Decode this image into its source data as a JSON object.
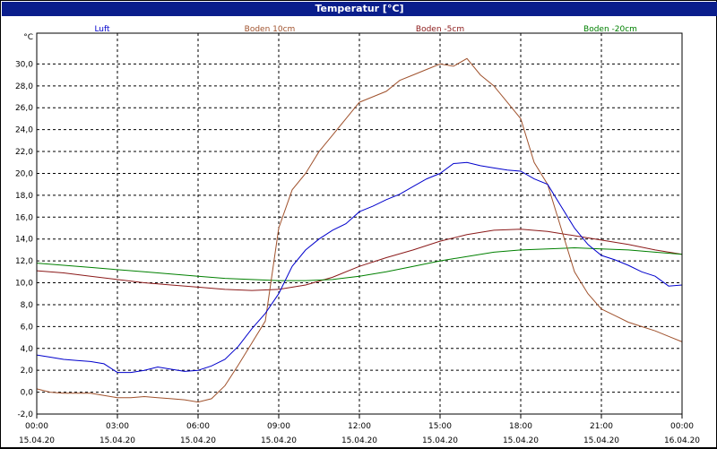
{
  "window": {
    "title": "Temperatur [°C]"
  },
  "chart_data": {
    "type": "line",
    "ylabel": "°C",
    "ylim": [
      -2,
      32
    ],
    "yticks": [
      "-2,0",
      "0,0",
      "2,0",
      "4,0",
      "6,0",
      "8,0",
      "10,0",
      "12,0",
      "14,0",
      "16,0",
      "18,0",
      "20,0",
      "22,0",
      "24,0",
      "26,0",
      "28,0",
      "30,0"
    ],
    "xlim": [
      0,
      24
    ],
    "xticks": [
      {
        "time": "00:00",
        "date": "15.04.20"
      },
      {
        "time": "03:00",
        "date": "15.04.20"
      },
      {
        "time": "06:00",
        "date": "15.04.20"
      },
      {
        "time": "09:00",
        "date": "15.04.20"
      },
      {
        "time": "12:00",
        "date": "15.04.20"
      },
      {
        "time": "15:00",
        "date": "15.04.20"
      },
      {
        "time": "18:00",
        "date": "15.04.20"
      },
      {
        "time": "21:00",
        "date": "15.04.20"
      },
      {
        "time": "00:00",
        "date": "16.04.20"
      }
    ],
    "grid": true,
    "legend_position": "top",
    "series": [
      {
        "name": "Luft",
        "color": "#0000cc",
        "x": [
          0,
          0.5,
          1,
          1.5,
          2,
          2.5,
          3,
          3.5,
          4,
          4.5,
          5,
          5.5,
          6,
          6.5,
          7,
          7.5,
          8,
          8.5,
          9,
          9.5,
          10,
          10.5,
          11,
          11.5,
          12,
          12.5,
          13,
          13.5,
          14,
          14.5,
          15,
          15.5,
          16,
          16.5,
          17,
          17.5,
          18,
          18.5,
          19,
          19.5,
          20,
          20.5,
          21,
          21.5,
          22,
          22.5,
          23,
          23.5,
          24
        ],
        "y": [
          3.4,
          3.2,
          3.0,
          2.9,
          2.8,
          2.6,
          1.8,
          1.8,
          2.0,
          2.3,
          2.1,
          1.9,
          2.0,
          2.4,
          3.0,
          4.2,
          5.8,
          7.2,
          9.0,
          11.5,
          13.0,
          14.0,
          14.8,
          15.4,
          16.5,
          17.0,
          17.6,
          18.1,
          18.8,
          19.5,
          20.0,
          20.9,
          21.0,
          20.7,
          20.5,
          20.3,
          20.2,
          19.5,
          19.0,
          17.0,
          15.0,
          13.5,
          12.5,
          12.1,
          11.6,
          11.0,
          10.6,
          9.7,
          9.8
        ]
      },
      {
        "name": "Boden 10cm",
        "color": "#a0522d",
        "x": [
          0,
          0.5,
          1,
          1.5,
          2,
          2.5,
          3,
          3.5,
          4,
          4.5,
          5,
          5.5,
          6,
          6.5,
          7,
          7.5,
          8,
          8.5,
          9,
          9.5,
          10,
          10.5,
          11,
          11.5,
          12,
          12.5,
          13,
          13.5,
          14,
          14.5,
          15,
          15.5,
          16,
          16.5,
          17,
          17.5,
          18,
          18.5,
          19,
          19.5,
          20,
          20.5,
          21,
          21.5,
          22,
          22.5,
          23,
          23.5,
          24
        ],
        "y": [
          0.3,
          0.0,
          -0.1,
          -0.1,
          -0.1,
          -0.3,
          -0.5,
          -0.5,
          -0.4,
          -0.5,
          -0.6,
          -0.7,
          -0.9,
          -0.6,
          0.6,
          2.5,
          4.5,
          6.5,
          15.0,
          18.5,
          20.0,
          22.0,
          23.5,
          25.0,
          26.5,
          27.0,
          27.5,
          28.5,
          29.0,
          29.5,
          30.0,
          29.8,
          30.5,
          29.0,
          28.0,
          26.5,
          25.0,
          21.0,
          19.0,
          15.0,
          11.0,
          9.0,
          7.6,
          7.0,
          6.4,
          6.0,
          5.6,
          5.1,
          4.6
        ]
      },
      {
        "name": "Boden -5cm",
        "color": "#8b1a1a",
        "x": [
          0,
          1,
          2,
          3,
          4,
          5,
          6,
          7,
          8,
          9,
          10,
          11,
          12,
          13,
          14,
          15,
          16,
          17,
          18,
          19,
          20,
          21,
          22,
          23,
          24
        ],
        "y": [
          11.1,
          10.9,
          10.6,
          10.3,
          10.0,
          9.8,
          9.6,
          9.4,
          9.3,
          9.4,
          9.8,
          10.5,
          11.5,
          12.3,
          13.0,
          13.8,
          14.4,
          14.8,
          14.9,
          14.7,
          14.3,
          13.9,
          13.5,
          13.0,
          12.6
        ]
      },
      {
        "name": "Boden -20cm",
        "color": "#008000",
        "x": [
          0,
          1,
          2,
          3,
          4,
          5,
          6,
          7,
          8,
          9,
          10,
          11,
          12,
          13,
          14,
          15,
          16,
          17,
          18,
          19,
          20,
          21,
          22,
          23,
          24
        ],
        "y": [
          11.8,
          11.6,
          11.4,
          11.2,
          11.0,
          10.8,
          10.6,
          10.4,
          10.3,
          10.2,
          10.2,
          10.3,
          10.6,
          11.0,
          11.5,
          12.0,
          12.4,
          12.8,
          13.0,
          13.1,
          13.2,
          13.1,
          13.0,
          12.8,
          12.6
        ]
      }
    ]
  }
}
